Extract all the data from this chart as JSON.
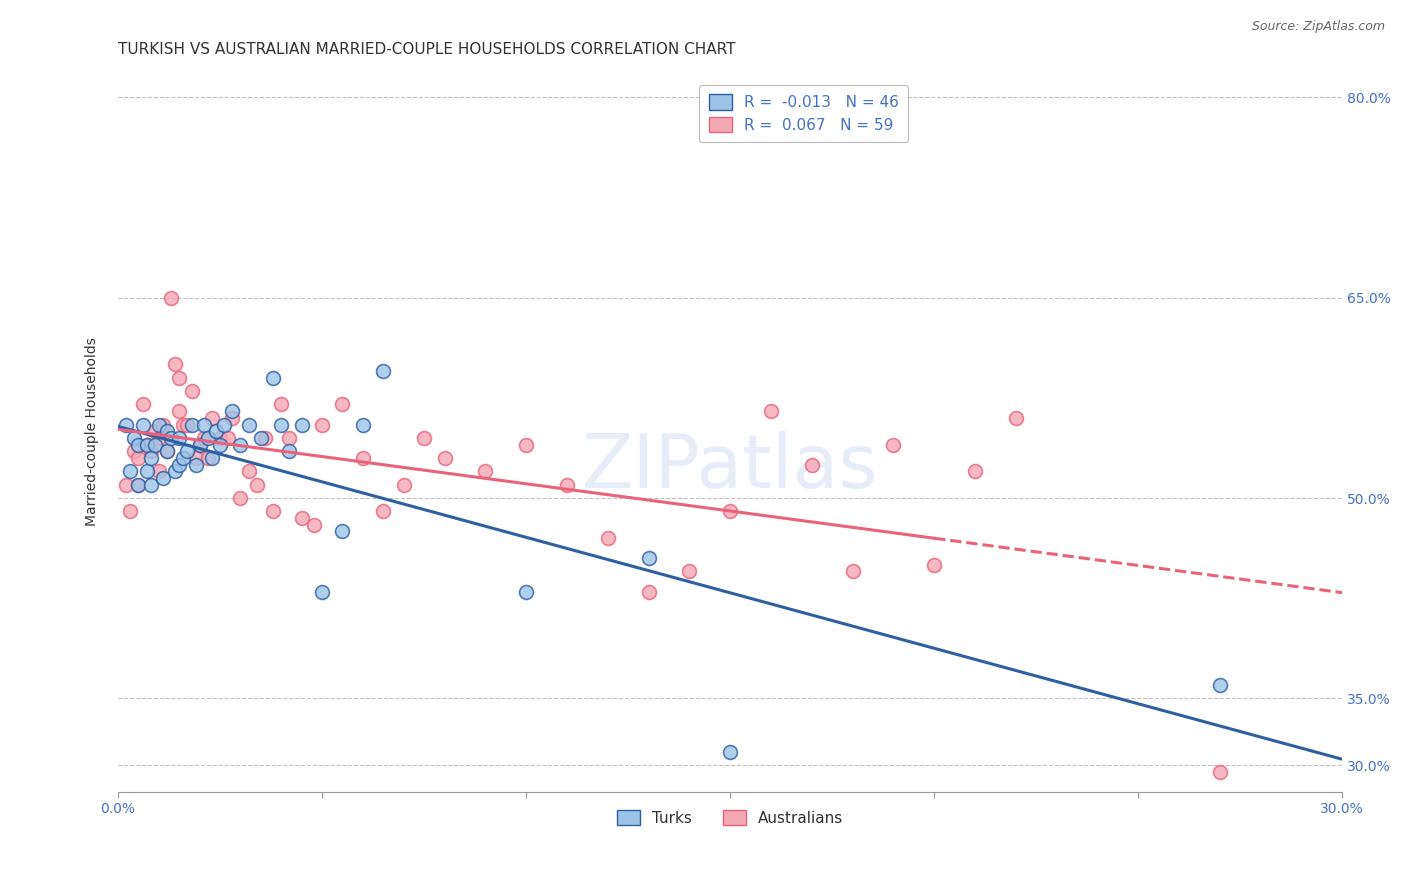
{
  "title": "TURKISH VS AUSTRALIAN MARRIED-COUPLE HOUSEHOLDS CORRELATION CHART",
  "source": "Source: ZipAtlas.com",
  "ylabel": "Married-couple Households",
  "xlabel_turks": "Turks",
  "xlabel_australians": "Australians",
  "xlim": [
    0.0,
    0.3
  ],
  "ylim": [
    0.28,
    0.82
  ],
  "yticks": [
    0.3,
    0.35,
    0.5,
    0.65,
    0.8
  ],
  "ytick_labels": [
    "30.0%",
    "35.0%",
    "50.0%",
    "65.0%",
    "80.0%"
  ],
  "xticks": [
    0.0,
    0.05,
    0.1,
    0.15,
    0.2,
    0.25,
    0.3
  ],
  "xtick_labels": [
    "0.0%",
    "",
    "",
    "",
    "",
    "",
    "30.0%"
  ],
  "R_turks": -0.013,
  "N_turks": 46,
  "R_australians": 0.067,
  "N_australians": 59,
  "color_turks": "#9DC3E8",
  "color_australians": "#F4A7B5",
  "color_trend_turks": "#2E5FA3",
  "color_trend_australians": "#E8637A",
  "color_axis_labels": "#4472C4",
  "background_color": "#FFFFFF",
  "grid_color": "#C0C0C0",
  "watermark": "ZIPatlas",
  "turks_x": [
    0.002,
    0.003,
    0.004,
    0.005,
    0.005,
    0.006,
    0.007,
    0.007,
    0.008,
    0.008,
    0.009,
    0.01,
    0.011,
    0.012,
    0.012,
    0.013,
    0.014,
    0.015,
    0.015,
    0.016,
    0.017,
    0.018,
    0.019,
    0.02,
    0.021,
    0.022,
    0.023,
    0.024,
    0.025,
    0.026,
    0.028,
    0.03,
    0.032,
    0.035,
    0.038,
    0.04,
    0.042,
    0.045,
    0.05,
    0.055,
    0.06,
    0.065,
    0.1,
    0.13,
    0.15,
    0.27
  ],
  "turks_y": [
    0.555,
    0.52,
    0.545,
    0.54,
    0.51,
    0.555,
    0.52,
    0.54,
    0.53,
    0.51,
    0.54,
    0.555,
    0.515,
    0.55,
    0.535,
    0.545,
    0.52,
    0.545,
    0.525,
    0.53,
    0.535,
    0.555,
    0.525,
    0.54,
    0.555,
    0.545,
    0.53,
    0.55,
    0.54,
    0.555,
    0.565,
    0.54,
    0.555,
    0.545,
    0.59,
    0.555,
    0.535,
    0.555,
    0.43,
    0.475,
    0.555,
    0.595,
    0.43,
    0.455,
    0.31,
    0.36
  ],
  "australians_x": [
    0.002,
    0.003,
    0.004,
    0.005,
    0.005,
    0.006,
    0.007,
    0.008,
    0.009,
    0.01,
    0.01,
    0.011,
    0.012,
    0.013,
    0.014,
    0.015,
    0.015,
    0.016,
    0.017,
    0.018,
    0.019,
    0.02,
    0.021,
    0.022,
    0.023,
    0.025,
    0.027,
    0.028,
    0.03,
    0.032,
    0.034,
    0.036,
    0.038,
    0.04,
    0.042,
    0.045,
    0.048,
    0.05,
    0.055,
    0.06,
    0.065,
    0.07,
    0.075,
    0.08,
    0.09,
    0.1,
    0.11,
    0.12,
    0.13,
    0.14,
    0.15,
    0.16,
    0.17,
    0.18,
    0.19,
    0.2,
    0.21,
    0.22,
    0.27
  ],
  "australians_y": [
    0.51,
    0.49,
    0.535,
    0.53,
    0.51,
    0.57,
    0.54,
    0.535,
    0.55,
    0.52,
    0.545,
    0.555,
    0.535,
    0.65,
    0.6,
    0.59,
    0.565,
    0.555,
    0.555,
    0.58,
    0.53,
    0.54,
    0.545,
    0.53,
    0.56,
    0.545,
    0.545,
    0.56,
    0.5,
    0.52,
    0.51,
    0.545,
    0.49,
    0.57,
    0.545,
    0.485,
    0.48,
    0.555,
    0.57,
    0.53,
    0.49,
    0.51,
    0.545,
    0.53,
    0.52,
    0.54,
    0.51,
    0.47,
    0.43,
    0.445,
    0.49,
    0.565,
    0.525,
    0.445,
    0.54,
    0.45,
    0.52,
    0.56,
    0.295
  ],
  "title_fontsize": 11,
  "label_fontsize": 10,
  "tick_fontsize": 10,
  "legend_fontsize": 11,
  "marker_size": 100
}
